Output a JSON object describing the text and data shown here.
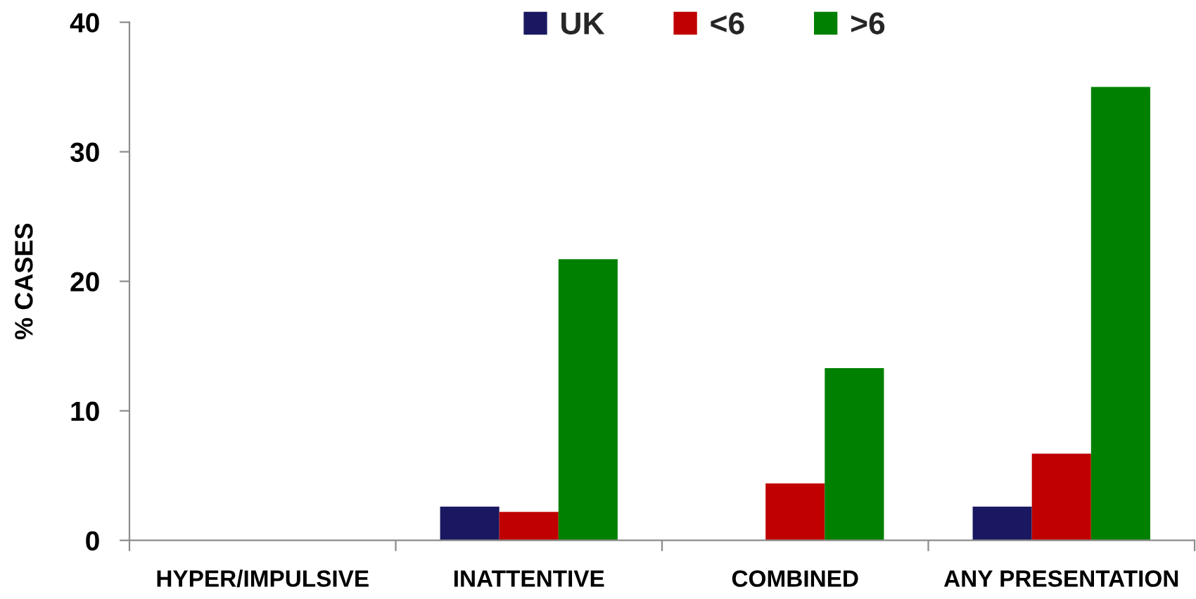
{
  "chart_data": {
    "type": "bar",
    "ylabel": "% CASES",
    "categories": [
      "HYPER/IMPULSIVE",
      "INATTENTIVE",
      "COMBINED",
      "ANY PRESENTATION"
    ],
    "series": [
      {
        "name": "UK",
        "color": "#1a1860",
        "values": [
          0,
          2.6,
          0,
          2.6
        ]
      },
      {
        "name": "<6",
        "color": "#c00000",
        "values": [
          0,
          2.2,
          4.4,
          6.7
        ]
      },
      {
        "name": ">6",
        "color": "#008000",
        "values": [
          0,
          21.7,
          13.3,
          35
        ]
      }
    ],
    "ylim": [
      0,
      40
    ],
    "yticks": [
      0,
      10,
      20,
      30,
      40
    ],
    "grid": false,
    "legend": "top"
  }
}
